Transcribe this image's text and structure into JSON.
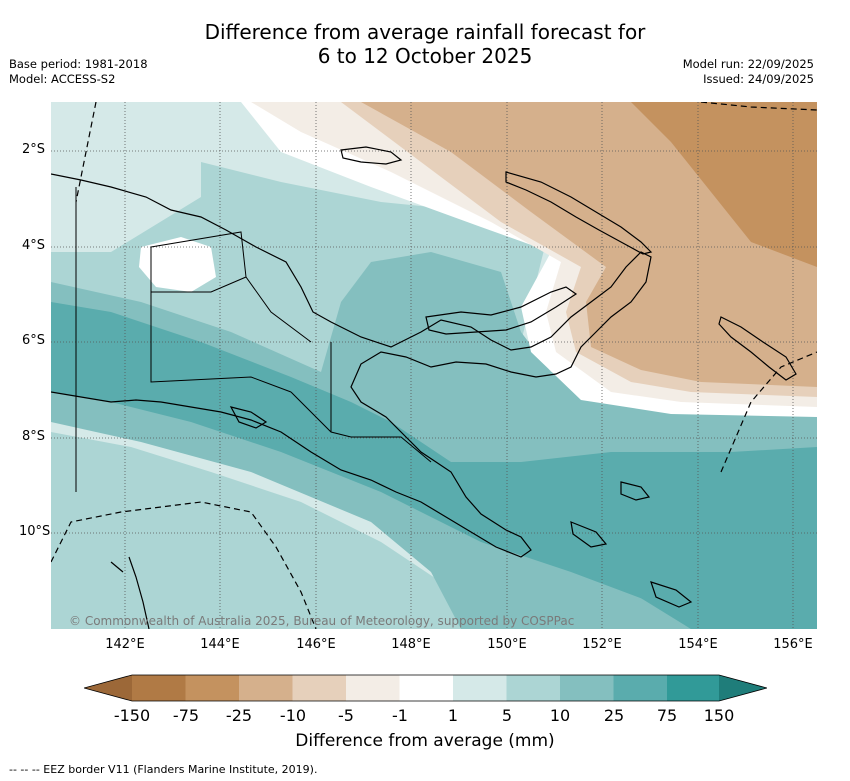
{
  "title_line1": "Difference from average rainfall forecast for",
  "title_line2": "6 to 12 October 2025",
  "base_period": "Base period: 1981-2018",
  "model": "Model: ACCESS-S2",
  "model_run": "Model run: 22/09/2025",
  "issued": "Issued: 24/09/2025",
  "lat_labels": [
    "2°S",
    "4°S",
    "6°S",
    "8°S",
    "10°S"
  ],
  "lon_labels": [
    "142°E",
    "144°E",
    "146°E",
    "148°E",
    "150°E",
    "152°E",
    "154°E",
    "156°E"
  ],
  "credit": "© Commonwealth of Australia 2025, Bureau of Meteorology, supported by COSPPac",
  "colorbar": {
    "title": "Difference from average (mm)",
    "tick_labels": [
      "-150",
      "-75",
      "-25",
      "-10",
      "-5",
      "-1",
      "1",
      "5",
      "10",
      "25",
      "75",
      "150"
    ],
    "colors": [
      "#9c6838",
      "#b07a45",
      "#c4925f",
      "#d5b08c",
      "#e6d0bb",
      "#f3ede6",
      "#ffffff",
      "#d5e9e8",
      "#acd5d4",
      "#84bfbf",
      "#5aacad",
      "#319a98",
      "#1f7d7a"
    ]
  },
  "eez_legend": "-- -- -- EEZ border V11 (Flanders Marine Institute, 2019)."
}
